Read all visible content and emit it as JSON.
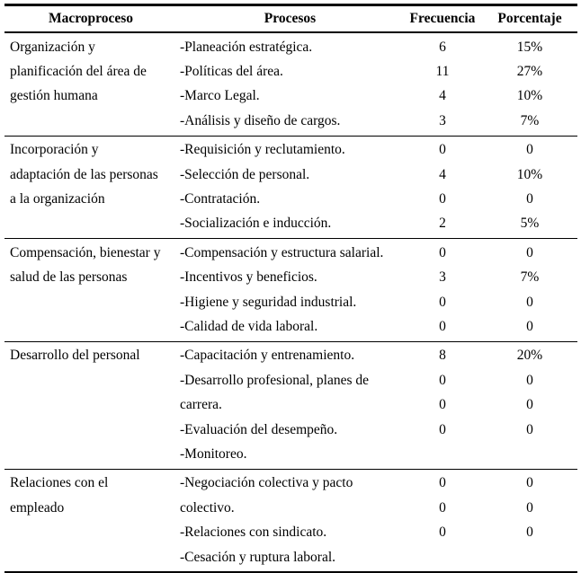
{
  "table": {
    "headers": {
      "macroproceso": "Macroproceso",
      "procesos": "Procesos",
      "frecuencia": "Frecuencia",
      "porcentaje": "Porcentaje"
    },
    "sections": [
      {
        "macroproceso": "Organización y planificación del área de gestión humana",
        "macro_lines": [
          "Organización y",
          "planificación del área de",
          "gestión humana"
        ],
        "rows": [
          {
            "proceso": "-Planeación estratégica.",
            "frecuencia": "6",
            "porcentaje": "15%"
          },
          {
            "proceso": "-Políticas del área.",
            "frecuencia": "11",
            "porcentaje": "27%"
          },
          {
            "proceso": "-Marco Legal.",
            "frecuencia": "4",
            "porcentaje": "10%"
          },
          {
            "proceso": "-Análisis y diseño de cargos.",
            "frecuencia": "3",
            "porcentaje": "7%"
          }
        ]
      },
      {
        "macroproceso": "Incorporación y adaptación de las personas a la organización",
        "macro_lines": [
          "Incorporación y",
          "adaptación de las personas",
          "a la organización"
        ],
        "rows": [
          {
            "proceso": "-Requisición y reclutamiento.",
            "frecuencia": "0",
            "porcentaje": "0"
          },
          {
            "proceso": "-Selección de personal.",
            "frecuencia": "4",
            "porcentaje": "10%"
          },
          {
            "proceso": "-Contratación.",
            "frecuencia": "0",
            "porcentaje": "0"
          },
          {
            "proceso": "-Socialización e inducción.",
            "frecuencia": "2",
            "porcentaje": "5%"
          }
        ]
      },
      {
        "macroproceso": "Compensación, bienestar y salud de las personas",
        "macro_lines": [
          "Compensación, bienestar y",
          "salud de las personas"
        ],
        "rows": [
          {
            "proceso": "-Compensación y estructura salarial.",
            "frecuencia": "0",
            "porcentaje": "0"
          },
          {
            "proceso": "-Incentivos y beneficios.",
            "frecuencia": "3",
            "porcentaje": "7%"
          },
          {
            "proceso": "-Higiene y seguridad industrial.",
            "frecuencia": "0",
            "porcentaje": "0"
          },
          {
            "proceso": "-Calidad de vida laboral.",
            "frecuencia": "0",
            "porcentaje": "0"
          }
        ]
      },
      {
        "macroproceso": "Desarrollo del personal",
        "macro_lines": [
          "Desarrollo del personal"
        ],
        "rows": [
          {
            "proceso": "-Capacitación y entrenamiento.",
            "frecuencia": "8",
            "porcentaje": "20%"
          },
          {
            "proceso": "-Desarrollo profesional, planes de",
            "frecuencia": "0",
            "porcentaje": "0"
          },
          {
            "proceso": "carrera.",
            "frecuencia": "0",
            "porcentaje": "0"
          },
          {
            "proceso": "-Evaluación del desempeño.",
            "frecuencia": "0",
            "porcentaje": "0"
          },
          {
            "proceso": "-Monitoreo.",
            "frecuencia": "",
            "porcentaje": ""
          }
        ]
      },
      {
        "macroproceso": "Relaciones con el empleado",
        "macro_lines": [
          "Relaciones con el",
          "empleado"
        ],
        "rows": [
          {
            "proceso": "-Negociación colectiva y pacto",
            "frecuencia": "0",
            "porcentaje": "0"
          },
          {
            "proceso": "colectivo.",
            "frecuencia": "0",
            "porcentaje": "0"
          },
          {
            "proceso": "-Relaciones con sindicato.",
            "frecuencia": "0",
            "porcentaje": "0"
          },
          {
            "proceso": "-Cesación y ruptura laboral.",
            "frecuencia": "",
            "porcentaje": ""
          }
        ]
      }
    ]
  }
}
